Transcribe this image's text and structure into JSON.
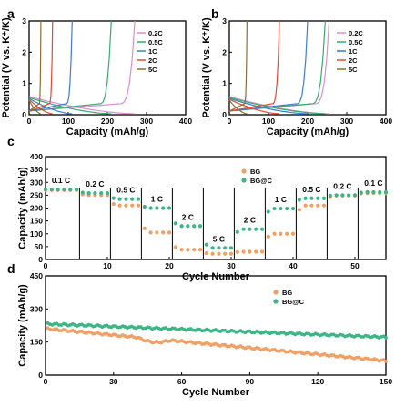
{
  "chart_data": [
    {
      "panel": "a",
      "type": "line",
      "xlabel": "Capacity (mAh/g)",
      "ylabel": "Potential (V vs. K⁺/K)",
      "xlim": [
        0,
        400
      ],
      "ylim": [
        0,
        3
      ],
      "xticks": [
        "0",
        "100",
        "200",
        "300",
        "400"
      ],
      "yticks": [
        "0",
        "1",
        "2",
        "3"
      ],
      "legend_position": "right",
      "series": [
        {
          "name": "0.2C",
          "color": "#d98fd1",
          "capacity": 270
        },
        {
          "name": "0.5C",
          "color": "#3aa86c",
          "capacity": 210
        },
        {
          "name": "1C",
          "color": "#3b7fc4",
          "capacity": 110
        },
        {
          "name": "2C",
          "color": "#e04a35",
          "capacity": 60
        },
        {
          "name": "5C",
          "color": "#8b6f2e",
          "capacity": 30
        }
      ]
    },
    {
      "panel": "b",
      "type": "line",
      "xlabel": "Capacity (mAh/g)",
      "ylabel": "Potential (V vs. K⁺/K)",
      "xlim": [
        0,
        400
      ],
      "ylim": [
        0,
        3
      ],
      "xticks": [
        "0",
        "100",
        "200",
        "300",
        "400"
      ],
      "yticks": [
        "0",
        "1",
        "2",
        "3"
      ],
      "legend_position": "right",
      "series": [
        {
          "name": "0.2C",
          "color": "#d98fd1",
          "capacity": 255
        },
        {
          "name": "0.5C",
          "color": "#3aa86c",
          "capacity": 245
        },
        {
          "name": "1C",
          "color": "#3b7fc4",
          "capacity": 200
        },
        {
          "name": "2C",
          "color": "#e04a35",
          "capacity": 128
        },
        {
          "name": "5C",
          "color": "#8b6f2e",
          "capacity": 45
        }
      ]
    },
    {
      "panel": "c",
      "type": "scatter",
      "xlabel": "Cycle Number",
      "ylabel": "Capacity (mAh/g)",
      "xlim": [
        0,
        55
      ],
      "ylim": [
        0,
        400
      ],
      "xticks": [
        "0",
        "10",
        "20",
        "30",
        "40",
        "50"
      ],
      "yticks": [
        "0",
        "50",
        "100",
        "150",
        "200",
        "250",
        "300",
        "350",
        "400"
      ],
      "legend_position": "right",
      "rate_labels": [
        "0.1 C",
        "0.2 C",
        "0.5 C",
        "1 C",
        "2 C",
        "5 C",
        "2 C",
        "1 C",
        "0.5 C",
        "0.2 C",
        "0.1 C"
      ],
      "segment_bounds": [
        0,
        6,
        11,
        16,
        21,
        26,
        31,
        36,
        41,
        46,
        51,
        56
      ],
      "series": [
        {
          "name": "BG",
          "color": "#f0a064",
          "segment_values": [
            270,
            250,
            210,
            105,
            38,
            22,
            30,
            100,
            210,
            248,
            258
          ]
        },
        {
          "name": "BG@C",
          "color": "#3db586",
          "segment_values": [
            272,
            258,
            235,
            200,
            130,
            45,
            118,
            198,
            238,
            250,
            262
          ]
        }
      ]
    },
    {
      "panel": "d",
      "type": "scatter",
      "xlabel": "Cycle Number",
      "ylabel": "Capacity (mAh/g)",
      "xlim": [
        0,
        150
      ],
      "ylim": [
        0,
        450
      ],
      "xticks": [
        "0",
        "30",
        "60",
        "90",
        "120",
        "150"
      ],
      "yticks": [
        "0",
        "150",
        "300",
        "450"
      ],
      "legend_position": "top-right",
      "series": [
        {
          "name": "BG",
          "color": "#f0a064",
          "start": 210,
          "end": 65
        },
        {
          "name": "BG@C",
          "color": "#3db586",
          "start": 232,
          "end": 172
        }
      ]
    }
  ]
}
